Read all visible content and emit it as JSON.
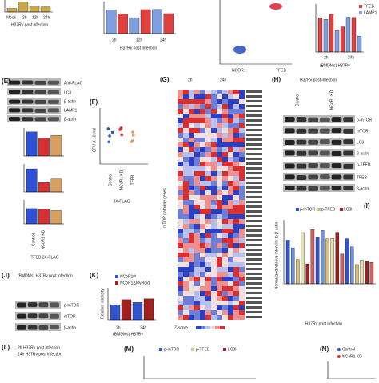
{
  "panels": [
    {
      "texts": [
        "Mock",
        "2h",
        "12h",
        "24h",
        "H37Rv post infection"
      ]
    },
    {
      "texts": [
        "2h",
        "12h",
        "24h",
        "H37Rv post infection"
      ]
    },
    {
      "texts": [
        "NCOR1",
        "TFEB"
      ]
    },
    {
      "texts": [
        "TFEB",
        "LAMP1",
        "2h",
        "24h",
        "(BMDMs) H37Rv"
      ]
    },
    {
      "label": "(E)",
      "texts": [
        "Anti-FLAG",
        "LC3",
        "β-actin",
        "LAMP1",
        "β-actin",
        "Control",
        "NCoR1 KD",
        "TFEB 3X-FLAG"
      ]
    },
    {
      "label": "(F)",
      "texts": [
        "CFU X 10⁵/ml",
        "Control",
        "NCoR1 KD",
        "TFEB",
        "3X-FLAG"
      ]
    },
    {
      "label": "(G)",
      "texts": [
        "2h",
        "24h",
        "mTOR pathway genes",
        "Z-score"
      ]
    },
    {
      "label": "(H)",
      "texts": [
        "H37Rv post infection",
        "Control",
        "NCoR1 KD",
        "p-mTOR",
        "mTOR",
        "LC3",
        "β-actin",
        "p-TFEB",
        "TFEB",
        "β-actin"
      ]
    },
    {
      "label": "(I)",
      "texts": [
        "p-mTOR",
        "p-TFEB",
        "LC3II",
        "Normalized relative intensity to β-actin",
        "H37Rv post infection"
      ]
    },
    {
      "label": "(J)",
      "texts": [
        "(BMDMs) H37Rv post infection",
        "p-mTOR",
        "mTOR",
        "β-actin"
      ]
    },
    {
      "label": "(K)",
      "texts": [
        "NCoR1ᶠ/ᶠ",
        "NCoR1ᐃMyeloid",
        "(BMDMs) H37Rv",
        "2h",
        "24h",
        "Relative intensity"
      ]
    },
    {
      "label": "(L)",
      "texts": [
        "2h H37Rv post infection",
        "24h H37Rv post infection"
      ]
    },
    {
      "label": "(M)",
      "texts": [
        "p-mTOR",
        "p-TFEB",
        "LC3II"
      ]
    },
    {
      "label": "(N)",
      "texts": [
        "Control",
        "NCoR1 KD"
      ]
    }
  ]
}
